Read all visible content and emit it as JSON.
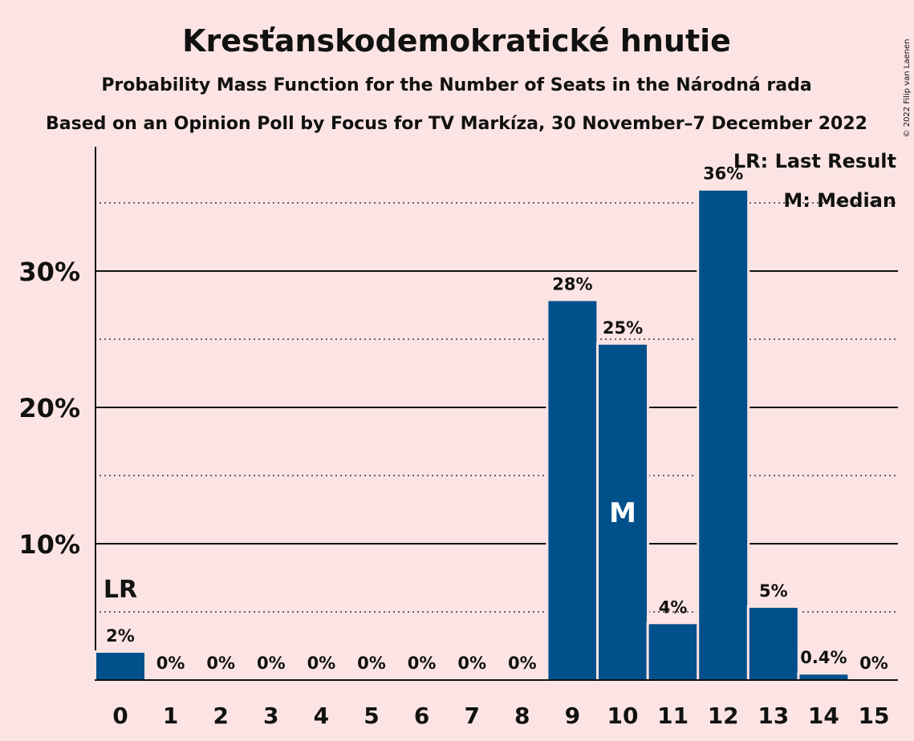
{
  "chart_data": {
    "type": "bar",
    "title": "Kresťanskodemokratické hnutie",
    "subtitle": "Probability Mass Function for the Number of Seats in the Národná rada",
    "subtitle2": "Based on an Opinion Poll by Focus for TV Markíza, 30 November–7 December 2022",
    "categories": [
      "0",
      "1",
      "2",
      "3",
      "4",
      "5",
      "6",
      "7",
      "8",
      "9",
      "10",
      "11",
      "12",
      "13",
      "14",
      "15"
    ],
    "values": [
      2,
      0,
      0,
      0,
      0,
      0,
      0,
      0,
      0,
      27.8,
      24.6,
      4.1,
      35.9,
      5.3,
      0.4,
      0
    ],
    "data_labels": [
      "2%",
      "0%",
      "0%",
      "0%",
      "0%",
      "0%",
      "0%",
      "0%",
      "0%",
      "28%",
      "25%",
      "4%",
      "36%",
      "5%",
      "0.4%",
      "0%"
    ],
    "yticks": [
      10,
      20,
      30
    ],
    "ytick_labels": [
      "10%",
      "20%",
      "30%"
    ],
    "ylim": [
      0,
      39
    ],
    "bar_color": "#00508c",
    "background": "#fde4e4",
    "last_result_index": 0,
    "last_result_mark": "LR",
    "median_index": 10,
    "median_mark": "M",
    "legend": [
      "LR: Last Result",
      "M: Median"
    ],
    "legend_position": "top-right",
    "copyright": "© 2022 Filip van Laenen"
  }
}
